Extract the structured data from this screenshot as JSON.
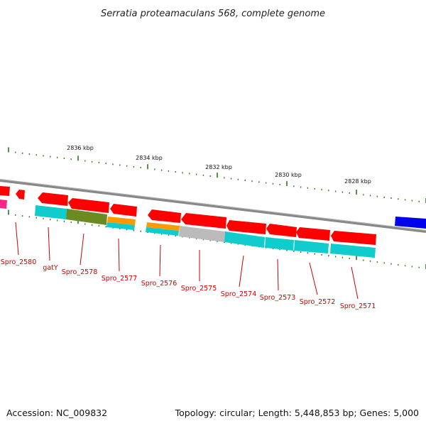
{
  "title": "Serratia proteamaculans 568, complete genome",
  "footer": {
    "accession": "Accession: NC_009832",
    "summary": "Topology: circular; Length: 5,448,853 bp; Genes: 5,000"
  },
  "colors": {
    "backbone": "#888888",
    "tick": "#2a7a1a",
    "label_line": "#cc0000",
    "label_text": "#cc0000",
    "gene_red": "#ff0000",
    "cog_cyan": "#11cccc",
    "cog_olive": "#6b8a22",
    "cog_orange": "#ff9900",
    "cog_gray": "#bbbbbb",
    "cog_magenta": "#ff2288",
    "gene_blue": "#0000ee"
  },
  "kbp_labels": [
    "2836 kbp",
    "2834 kbp",
    "2832 kbp",
    "2830 kbp",
    "2828 kbp"
  ],
  "gene_labels": [
    "Spro_2580",
    "gatY",
    "Spro_2578",
    "Spro_2577",
    "Spro_2576",
    "Spro_2575",
    "Spro_2574",
    "Spro_2573",
    "Spro_2572",
    "Spro_2571"
  ]
}
